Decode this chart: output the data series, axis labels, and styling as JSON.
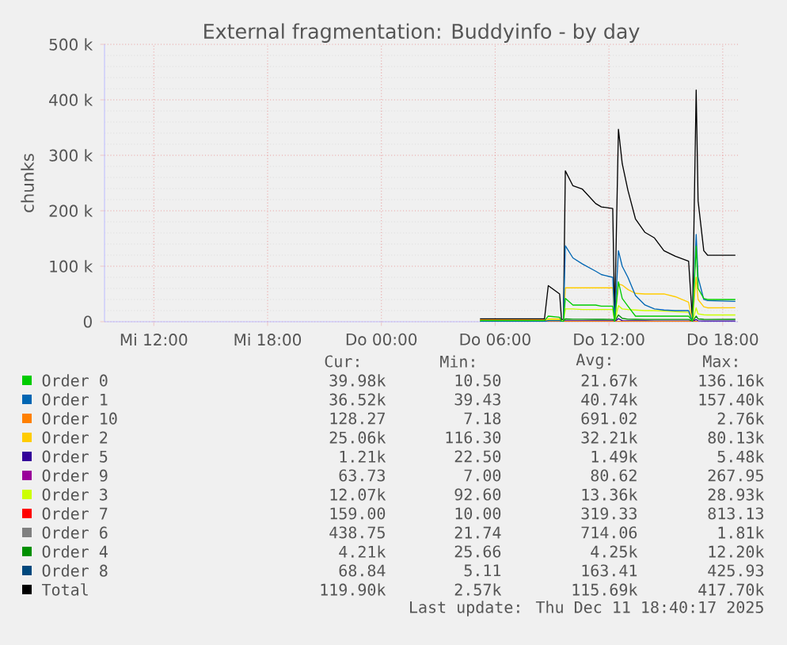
{
  "chart_data": {
    "type": "line",
    "title": "External fragmentation: Buddyinfo - by day",
    "ylabel": "chunks",
    "xlim": [
      "2025-12-10T09:24",
      "2025-12-11T18:48"
    ],
    "ylim": [
      0,
      500000
    ],
    "xticks": [
      {
        "value": "2025-12-10T12:00",
        "label": "Mi 12:00"
      },
      {
        "value": "2025-12-10T18:00",
        "label": "Mi 18:00"
      },
      {
        "value": "2025-12-11T00:00",
        "label": "Do 00:00"
      },
      {
        "value": "2025-12-11T06:00",
        "label": "Do 06:00"
      },
      {
        "value": "2025-12-11T12:00",
        "label": "Do 12:00"
      },
      {
        "value": "2025-12-11T18:00",
        "label": "Do 18:00"
      }
    ],
    "yticks": [
      0,
      {
        "value": 100000,
        "label": "100 k"
      },
      {
        "value": 200000,
        "label": "200 k"
      },
      {
        "value": 300000,
        "label": "300 k"
      },
      {
        "value": 400000,
        "label": "400 k"
      },
      {
        "value": 500000,
        "label": "500 k"
      }
    ],
    "grid": true,
    "legend": "bottom",
    "x": [
      "2025-12-11T05:12",
      "2025-12-11T08:36",
      "2025-12-11T08:48",
      "2025-12-11T09:24",
      "2025-12-11T09:30",
      "2025-12-11T09:36",
      "2025-12-11T09:42",
      "2025-12-11T10:06",
      "2025-12-11T10:36",
      "2025-12-11T11:18",
      "2025-12-11T11:36",
      "2025-12-11T12:12",
      "2025-12-11T12:18",
      "2025-12-11T12:30",
      "2025-12-11T12:42",
      "2025-12-11T13:00",
      "2025-12-11T13:24",
      "2025-12-11T13:54",
      "2025-12-11T14:24",
      "2025-12-11T14:54",
      "2025-12-11T15:30",
      "2025-12-11T16:12",
      "2025-12-11T16:24",
      "2025-12-11T16:36",
      "2025-12-11T16:42",
      "2025-12-11T17:00",
      "2025-12-11T17:12",
      "2025-12-11T18:40"
    ],
    "series": [
      {
        "name": "Order 0",
        "color": "#00cc00",
        "values": [
          2000,
          2000,
          10000,
          8000,
          500,
          500,
          42000,
          30000,
          30000,
          30000,
          28000,
          28000,
          500,
          72000,
          42000,
          28000,
          10000,
          10000,
          10000,
          10000,
          10000,
          10000,
          500,
          136160,
          60000,
          42000,
          40000,
          39980
        ]
      },
      {
        "name": "Order 1",
        "color": "#0066b3",
        "values": [
          500,
          500,
          2000,
          2000,
          500,
          500,
          137000,
          115000,
          104000,
          91000,
          85000,
          80000,
          500,
          128000,
          100000,
          80000,
          47000,
          30000,
          23000,
          21000,
          20000,
          20000,
          500,
          157400,
          80000,
          40000,
          38000,
          36520
        ]
      },
      {
        "name": "Order 10",
        "color": "#ff8000",
        "values": [
          2760,
          2500,
          300,
          300,
          200,
          200,
          300,
          300,
          300,
          300,
          300,
          300,
          200,
          300,
          300,
          300,
          300,
          300,
          300,
          300,
          300,
          300,
          200,
          300,
          200,
          null,
          null,
          null
        ]
      },
      {
        "name": "Order 2",
        "color": "#ffcc00",
        "values": [
          3000,
          3000,
          5000,
          5000,
          1000,
          1000,
          61000,
          61000,
          61000,
          61000,
          61000,
          61000,
          1000,
          68000,
          66000,
          58000,
          51000,
          50000,
          50000,
          50000,
          45000,
          35000,
          1000,
          80130,
          40000,
          27000,
          25000,
          25060
        ]
      },
      {
        "name": "Order 5",
        "color": "#330099",
        "values": [
          null,
          null,
          null,
          800,
          50,
          50,
          1500,
          1500,
          1500,
          1500,
          1500,
          1400,
          50,
          5480,
          2000,
          1500,
          1400,
          1400,
          1300,
          1300,
          1300,
          1300,
          50,
          4000,
          1500,
          1250,
          1200,
          1210
        ]
      },
      {
        "name": "Order 9",
        "color": "#990099",
        "values": [
          null,
          null,
          null,
          null,
          null,
          null,
          null,
          null,
          null,
          null,
          null,
          null,
          null,
          null,
          null,
          null,
          null,
          null,
          null,
          null,
          null,
          null,
          null,
          null,
          null,
          null,
          null,
          null
        ]
      },
      {
        "name": "Order 3",
        "color": "#ccff00",
        "values": [
          1000,
          1000,
          3000,
          3000,
          300,
          300,
          23000,
          23000,
          22000,
          22000,
          22000,
          22000,
          300,
          28930,
          23000,
          22000,
          21000,
          20000,
          20000,
          19000,
          18000,
          17000,
          300,
          25000,
          14000,
          12500,
          12100,
          12070
        ]
      },
      {
        "name": "Order 7",
        "color": "#ff0000",
        "values": [
          null,
          null,
          null,
          null,
          null,
          null,
          null,
          null,
          null,
          null,
          null,
          null,
          null,
          null,
          null,
          null,
          null,
          null,
          null,
          null,
          null,
          null,
          null,
          null,
          null,
          null,
          null,
          null
        ]
      },
      {
        "name": "Order 6",
        "color": "#808080",
        "values": [
          null,
          null,
          null,
          null,
          null,
          null,
          null,
          null,
          null,
          null,
          null,
          null,
          null,
          null,
          null,
          null,
          null,
          null,
          null,
          null,
          null,
          null,
          null,
          null,
          null,
          null,
          null,
          null
        ]
      },
      {
        "name": "Order 4",
        "color": "#008f00",
        "values": [
          500,
          500,
          2000,
          2000,
          100,
          100,
          5000,
          4500,
          4500,
          4300,
          4300,
          4200,
          100,
          12200,
          6000,
          4500,
          4300,
          4200,
          4200,
          4200,
          4200,
          4200,
          100,
          10000,
          5000,
          4300,
          4200,
          4210
        ]
      },
      {
        "name": "Order 8",
        "color": "#00487d",
        "values": [
          null,
          null,
          null,
          null,
          null,
          null,
          null,
          null,
          null,
          null,
          null,
          null,
          null,
          null,
          null,
          null,
          null,
          null,
          null,
          null,
          null,
          null,
          null,
          null,
          null,
          null,
          null,
          null
        ]
      },
      {
        "name": "Total",
        "color": "#000000",
        "values": [
          5000,
          5000,
          65000,
          50000,
          4000,
          4000,
          272000,
          245000,
          239000,
          213000,
          207000,
          204000,
          4000,
          347000,
          285000,
          237000,
          185000,
          161000,
          151000,
          128000,
          118000,
          109000,
          4000,
          417700,
          218000,
          128000,
          120000,
          119900
        ]
      }
    ],
    "annotations": [
      "Cur:",
      "Min:",
      "Avg:",
      "Max:",
      "39.98k",
      "10.50",
      "21.67k",
      "136.16k",
      "36.52k",
      "39.43",
      "40.74k",
      "157.40k",
      "128.27",
      "7.18",
      "691.02",
      "2.76k",
      "25.06k",
      "116.30",
      "32.21k",
      "80.13k",
      "1.21k",
      "22.50",
      "1.49k",
      "5.48k",
      "63.73",
      "7.00",
      "80.62",
      "267.95",
      "12.07k",
      "92.60",
      "13.36k",
      "28.93k",
      "159.00",
      "10.00",
      "319.33",
      "813.13",
      "438.75",
      "21.74",
      "714.06",
      "1.81k",
      "4.21k",
      "25.66",
      "4.25k",
      "12.20k",
      "68.84",
      "5.11",
      "163.41",
      "425.93",
      "119.90k",
      "2.57k",
      "115.69k",
      "417.70k",
      "Last update: Thu Dec 11 18:40:17 2025"
    ]
  }
}
